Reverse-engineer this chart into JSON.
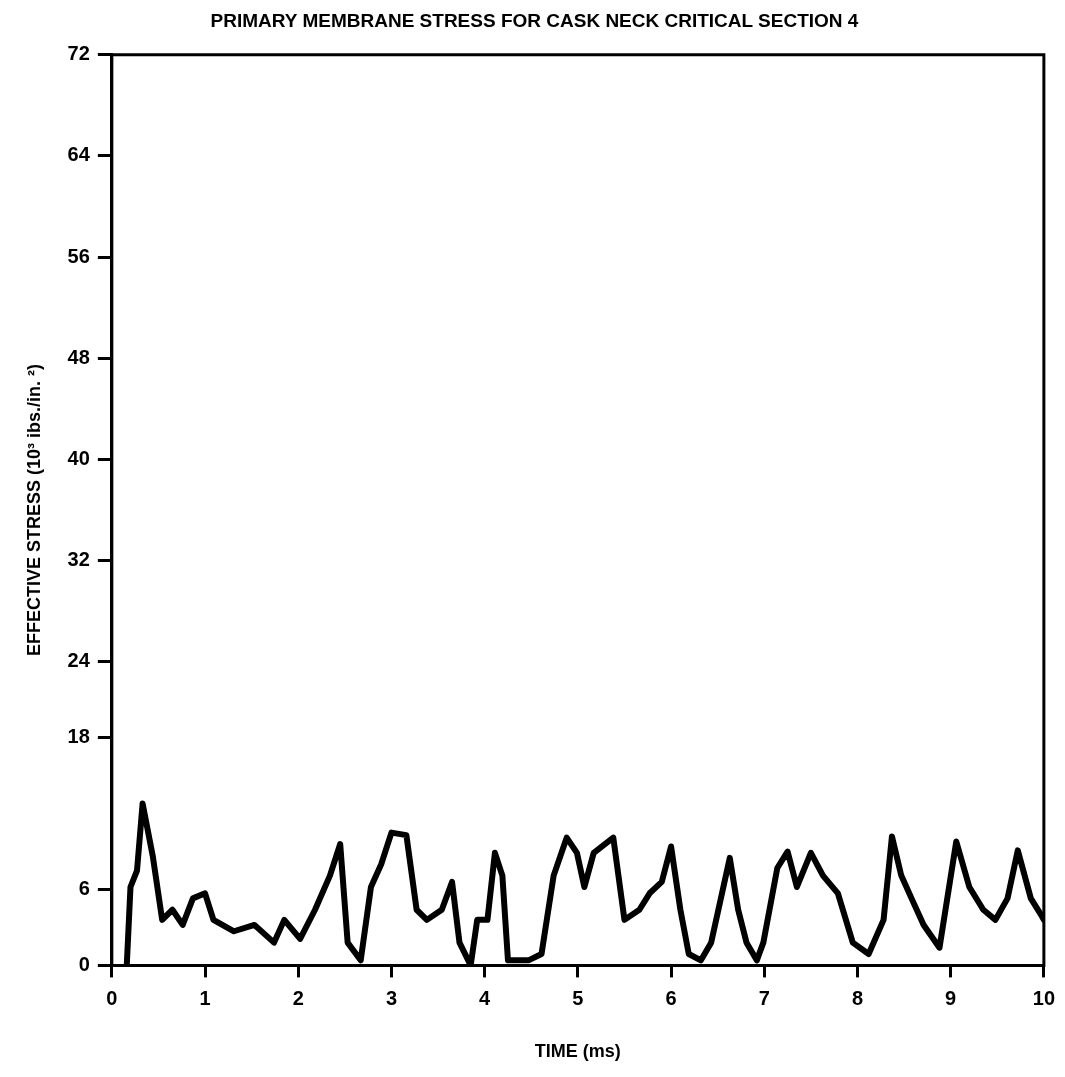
{
  "chart_data": {
    "type": "line",
    "title": "PRIMARY MEMBRANE STRESS FOR CASK NECK CRITICAL SECTION 4",
    "xlabel": "TIME (ms)",
    "ylabel": "EFFECTIVE STRESS (10³ ibs./in. ²)",
    "series": [
      {
        "color": "#000000",
        "x": [
          0.16,
          0.2,
          0.27,
          0.33,
          0.44,
          0.54,
          0.65,
          0.76,
          0.87,
          1.0,
          1.09,
          1.31,
          1.53,
          1.74,
          1.85,
          2.02,
          2.18,
          2.34,
          2.45,
          2.53,
          2.67,
          2.78,
          2.89,
          3.0,
          3.16,
          3.27,
          3.38,
          3.54,
          3.65,
          3.73,
          3.85,
          3.92,
          4.03,
          4.11,
          4.19,
          4.25,
          4.47,
          4.61,
          4.74,
          4.88,
          4.99,
          5.07,
          5.17,
          5.38,
          5.5,
          5.66,
          5.77,
          5.9,
          6.0,
          6.1,
          6.19,
          6.32,
          6.43,
          6.63,
          6.72,
          6.81,
          6.92,
          6.99,
          7.14,
          7.25,
          7.35,
          7.5,
          7.63,
          7.79,
          7.95,
          8.12,
          8.28,
          8.37,
          8.47,
          8.58,
          8.71,
          8.88,
          9.06,
          9.2,
          9.35,
          9.48,
          9.61,
          9.72,
          9.86,
          9.97,
          10.0
        ],
        "values": [
          0,
          6.2,
          7.5,
          12.8,
          8.6,
          3.6,
          4.4,
          3.2,
          5.3,
          5.7,
          3.6,
          2.7,
          3.2,
          1.8,
          3.6,
          2.1,
          4.4,
          7.1,
          9.6,
          1.8,
          0.4,
          6.2,
          8.0,
          10.5,
          10.3,
          4.4,
          3.6,
          4.4,
          6.6,
          1.8,
          0,
          3.6,
          3.6,
          8.9,
          7.1,
          0.4,
          0.4,
          0.9,
          7.1,
          10.1,
          8.9,
          6.2,
          8.9,
          10.1,
          3.6,
          4.4,
          5.7,
          6.6,
          9.4,
          4.4,
          0.9,
          0.4,
          1.8,
          8.5,
          4.4,
          1.8,
          0.4,
          1.8,
          7.7,
          9.0,
          6.2,
          8.9,
          7.1,
          5.7,
          1.8,
          0.9,
          3.6,
          10.2,
          7.1,
          5.3,
          3.2,
          1.4,
          9.8,
          6.2,
          4.4,
          3.6,
          5.3,
          9.1,
          5.3,
          4.0,
          3.6
        ]
      }
    ],
    "xlim": [
      0,
      10
    ],
    "xticks": [
      0,
      1,
      2,
      3,
      4,
      5,
      6,
      7,
      8,
      9,
      10
    ],
    "ylim": [
      0,
      72
    ],
    "yticks": [
      0,
      6,
      18,
      24,
      32,
      40,
      48,
      56,
      64,
      72
    ],
    "grid": false,
    "legend": false,
    "marker": "none",
    "line_style": "solid"
  }
}
